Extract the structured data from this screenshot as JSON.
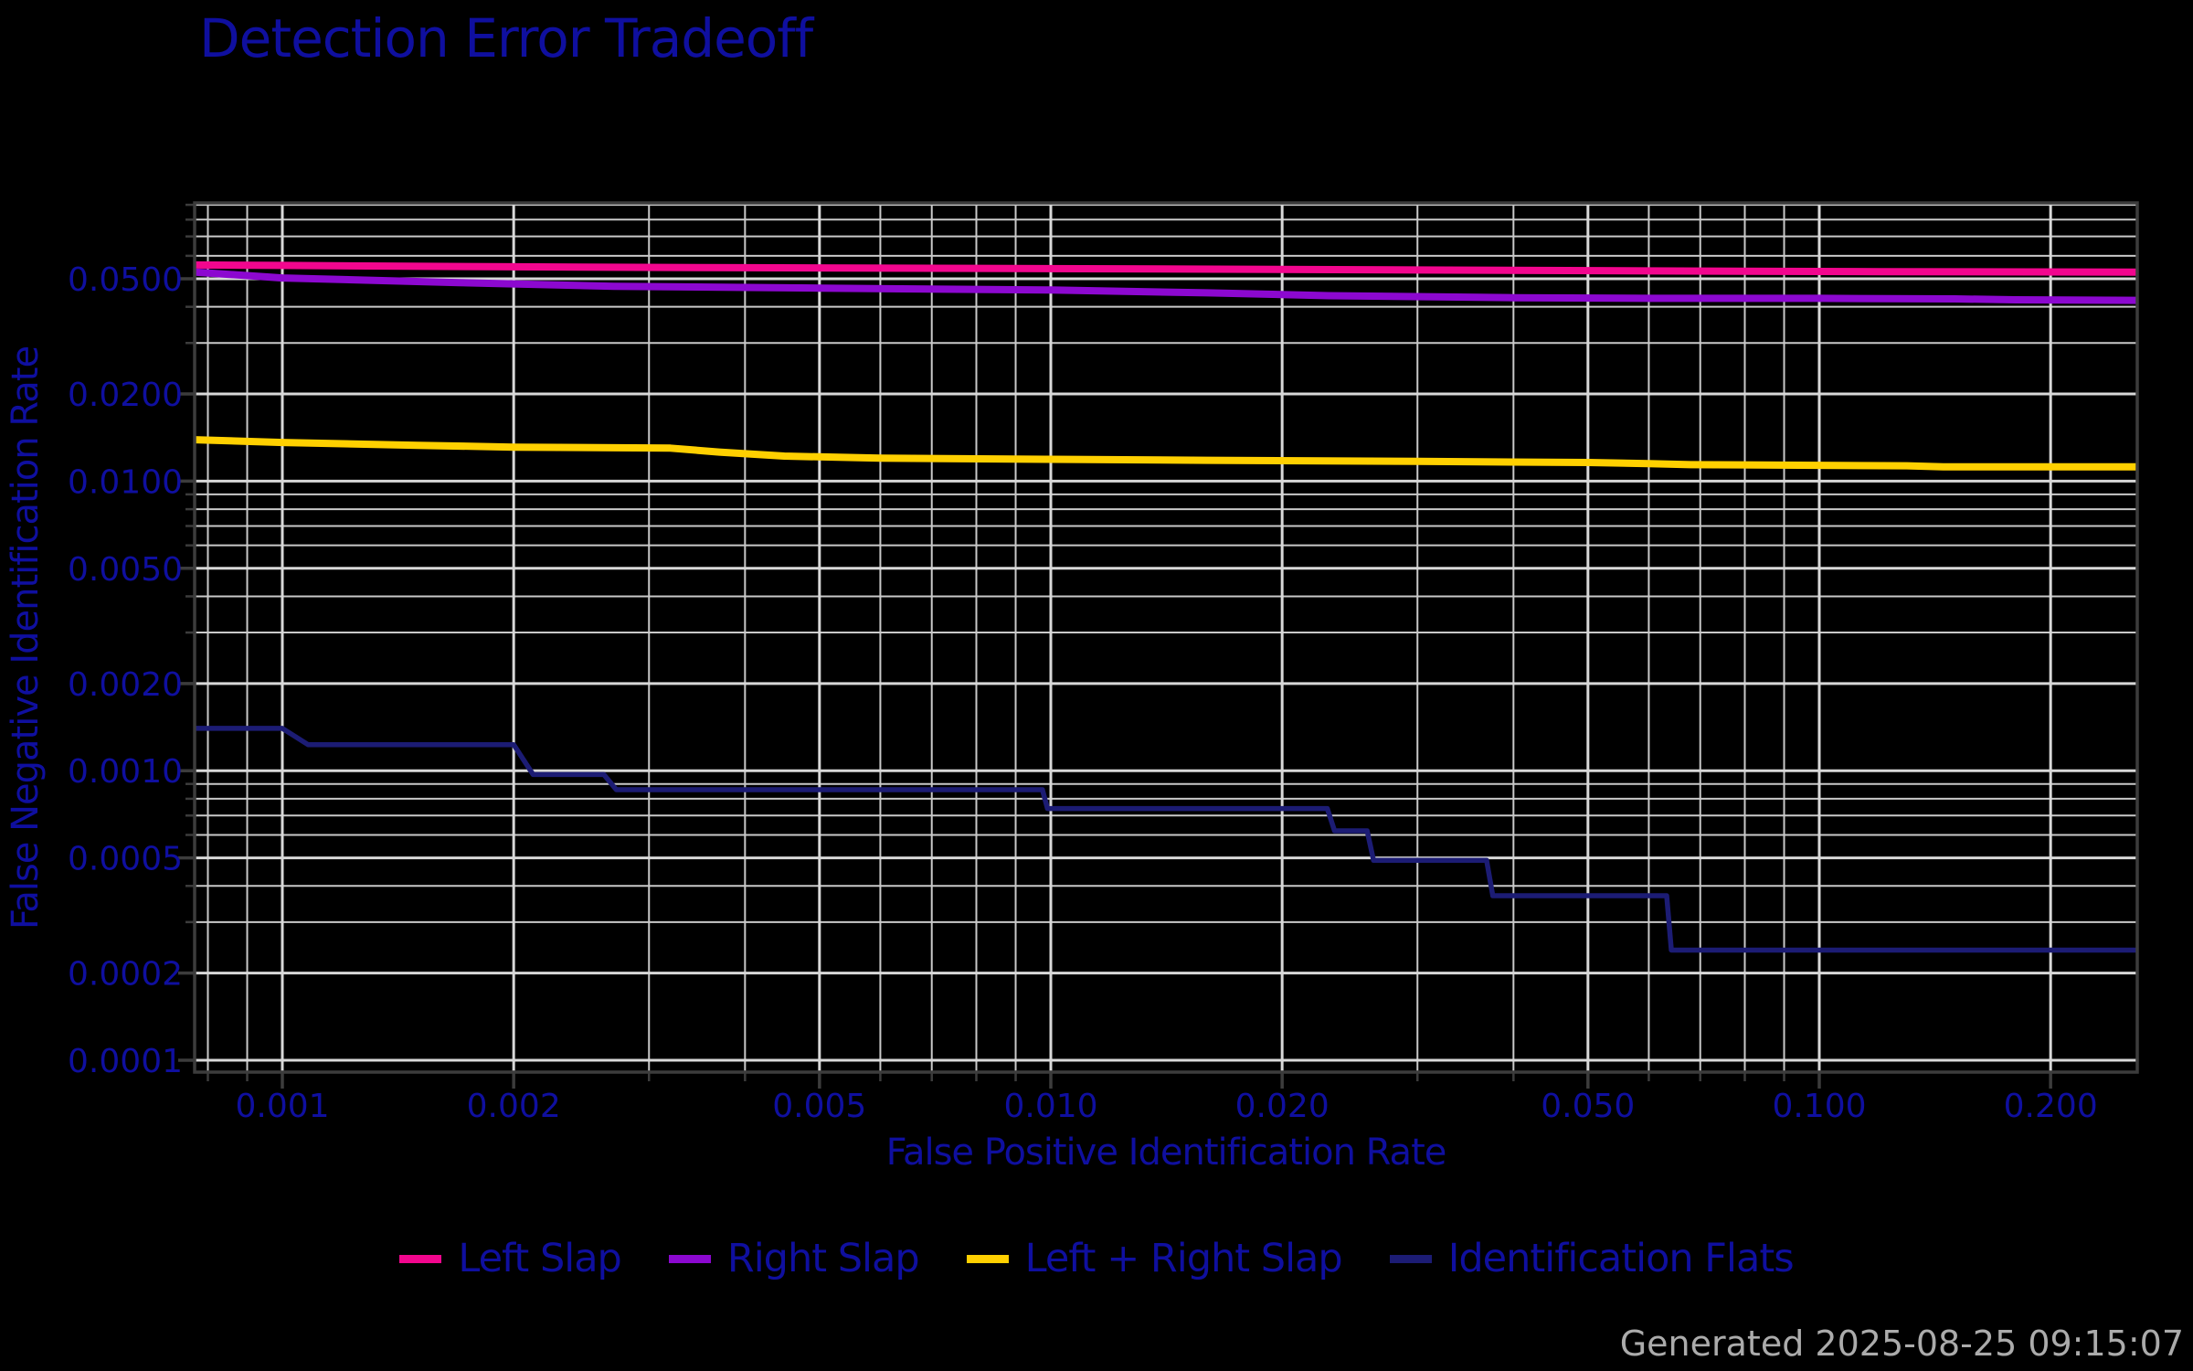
{
  "title": "Detection Error Tradeoff",
  "timestamp": "Generated 2025-08-25 09:15:07",
  "colors": {
    "background": "#000000",
    "text_blue": "#0f0f9f",
    "grid_major": "#d8d8d8",
    "grid_minor": "#c9c9c9",
    "spine": "#3c3c3c",
    "timestamp_gray": "#ababab"
  },
  "chart_data": {
    "type": "line",
    "title": "Detection Error Tradeoff",
    "xlabel": "False Positive Identification Rate",
    "ylabel": "False Negative Identification Rate",
    "xscale": "log",
    "yscale": "log",
    "xlim": [
      0.00077,
      0.259
    ],
    "ylim": [
      9.1e-05,
      0.0914
    ],
    "grid": "both-major-and-minor",
    "legend_position": "bottom",
    "x_ticks": [
      {
        "value": 0.001,
        "label": "0.001"
      },
      {
        "value": 0.002,
        "label": "0.002"
      },
      {
        "value": 0.005,
        "label": "0.005"
      },
      {
        "value": 0.01,
        "label": "0.010"
      },
      {
        "value": 0.02,
        "label": "0.020"
      },
      {
        "value": 0.05,
        "label": "0.050"
      },
      {
        "value": 0.1,
        "label": "0.100"
      },
      {
        "value": 0.2,
        "label": "0.200"
      }
    ],
    "y_ticks": [
      {
        "value": 0.05,
        "label": "0.0500"
      },
      {
        "value": 0.02,
        "label": "0.0200"
      },
      {
        "value": 0.01,
        "label": "0.0100"
      },
      {
        "value": 0.005,
        "label": "0.0050"
      },
      {
        "value": 0.002,
        "label": "0.0020"
      },
      {
        "value": 0.001,
        "label": "0.0010"
      },
      {
        "value": 0.0005,
        "label": "0.0005"
      },
      {
        "value": 0.0002,
        "label": "0.0002"
      },
      {
        "value": 0.0001,
        "label": "0.0001"
      }
    ],
    "series": [
      {
        "name": "Left Slap",
        "color": "#f2068e",
        "line_width": 8,
        "points": [
          [
            0.00077,
            0.0558
          ],
          [
            0.001,
            0.0556
          ],
          [
            0.002,
            0.055
          ],
          [
            0.004,
            0.0546
          ],
          [
            0.008,
            0.0543
          ],
          [
            0.015,
            0.054
          ],
          [
            0.03,
            0.0536
          ],
          [
            0.06,
            0.0532
          ],
          [
            0.12,
            0.0529
          ],
          [
            0.259,
            0.0527
          ]
        ]
      },
      {
        "name": "Right Slap",
        "color": "#8c08d0",
        "line_width": 8,
        "points": [
          [
            0.00077,
            0.0527
          ],
          [
            0.001,
            0.0503
          ],
          [
            0.0017,
            0.0485
          ],
          [
            0.0027,
            0.0471
          ],
          [
            0.005,
            0.0464
          ],
          [
            0.01,
            0.0457
          ],
          [
            0.016,
            0.0447
          ],
          [
            0.023,
            0.0437
          ],
          [
            0.04,
            0.043
          ],
          [
            0.06,
            0.0428
          ],
          [
            0.1,
            0.0428
          ],
          [
            0.15,
            0.0426
          ],
          [
            0.18,
            0.0423
          ],
          [
            0.259,
            0.0421
          ]
        ]
      },
      {
        "name": "Left + Right Slap",
        "color": "#ffd000",
        "line_width": 8,
        "points": [
          [
            0.00077,
            0.0139
          ],
          [
            0.001,
            0.0136
          ],
          [
            0.0015,
            0.0133
          ],
          [
            0.002,
            0.0131
          ],
          [
            0.0032,
            0.013
          ],
          [
            0.0037,
            0.0126
          ],
          [
            0.0045,
            0.0122
          ],
          [
            0.006,
            0.012
          ],
          [
            0.01,
            0.0119
          ],
          [
            0.016,
            0.0118
          ],
          [
            0.03,
            0.0117
          ],
          [
            0.05,
            0.0116
          ],
          [
            0.06,
            0.0115
          ],
          [
            0.068,
            0.0114
          ],
          [
            0.13,
            0.0113
          ],
          [
            0.145,
            0.0112
          ],
          [
            0.259,
            0.0112
          ]
        ]
      },
      {
        "name": "Identification Flats",
        "color": "#1c1c74",
        "line_width": 5.5,
        "points": [
          [
            0.00077,
            0.0014
          ],
          [
            0.001,
            0.0014
          ],
          [
            0.00108,
            0.00123
          ],
          [
            0.002,
            0.00123
          ],
          [
            0.00212,
            0.00097
          ],
          [
            0.00262,
            0.00097
          ],
          [
            0.00272,
            0.00086
          ],
          [
            0.00975,
            0.00086
          ],
          [
            0.0099,
            0.00074
          ],
          [
            0.0229,
            0.00074
          ],
          [
            0.0234,
            0.00062
          ],
          [
            0.0258,
            0.00062
          ],
          [
            0.0263,
            0.00049
          ],
          [
            0.0369,
            0.00049
          ],
          [
            0.0376,
            0.00037
          ],
          [
            0.0633,
            0.00037
          ],
          [
            0.0642,
            0.00024
          ],
          [
            0.259,
            0.00024
          ]
        ]
      }
    ]
  }
}
